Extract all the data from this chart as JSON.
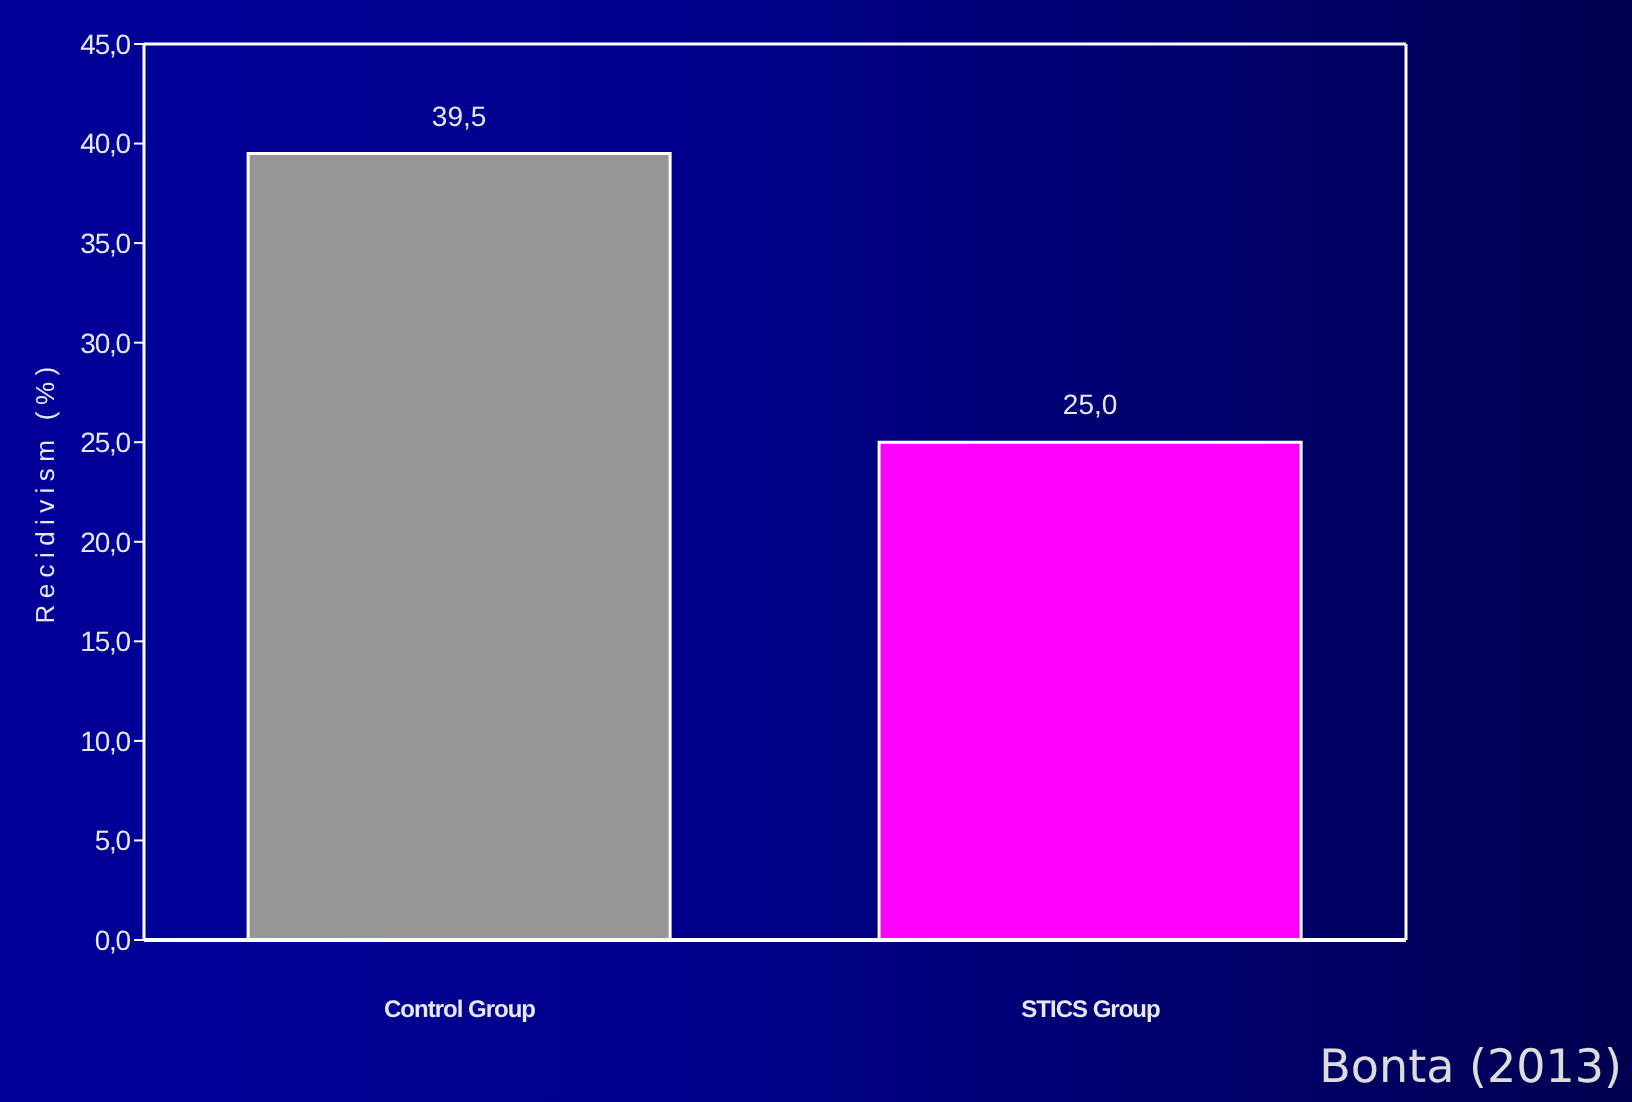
{
  "chart_data": {
    "type": "bar",
    "categories": [
      "Control Group",
      "STICS Group"
    ],
    "values": [
      39.5,
      25.0
    ],
    "colors": [
      "#969696",
      "#ff00ff"
    ],
    "value_labels": [
      "39,5",
      "25,0"
    ],
    "ylabel": "Recidivism (%)",
    "ylim": [
      0,
      45
    ],
    "yticks": [
      {
        "value": 0,
        "label": "0,0"
      },
      {
        "value": 5,
        "label": "5,0"
      },
      {
        "value": 10,
        "label": "10,0"
      },
      {
        "value": 15,
        "label": "15,0"
      },
      {
        "value": 20,
        "label": "20,0"
      },
      {
        "value": 25,
        "label": "25,0"
      },
      {
        "value": 30,
        "label": "30,0"
      },
      {
        "value": 35,
        "label": "35,0"
      },
      {
        "value": 40,
        "label": "40,0"
      },
      {
        "value": 45,
        "label": "45,0"
      }
    ],
    "annotations": [
      "Bonta (2013)"
    ]
  }
}
